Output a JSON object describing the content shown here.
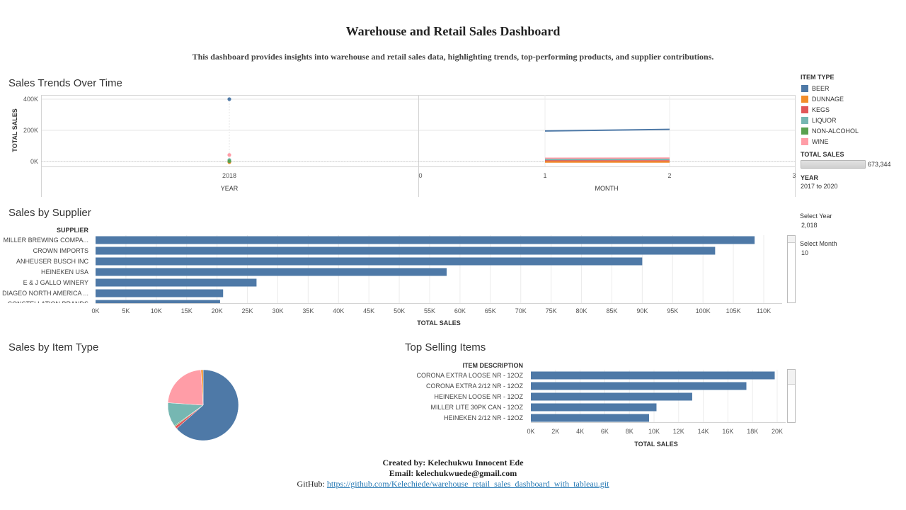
{
  "header": {
    "title": "Warehouse and Retail Sales Dashboard",
    "subtitle": "This dashboard provides insights into warehouse and retail sales data, highlighting trends, top-performing products, and supplier contributions."
  },
  "sections": {
    "trends": "Sales Trends Over Time",
    "supplier": "Sales by Supplier",
    "item_type": "Sales by Item Type",
    "top_items": "Top Selling Items"
  },
  "legend": {
    "title": "ITEM TYPE",
    "items": [
      {
        "label": "BEER",
        "color": "#4e79a7"
      },
      {
        "label": "DUNNAGE",
        "color": "#f28e2b"
      },
      {
        "label": "KEGS",
        "color": "#e15759"
      },
      {
        "label": "LIQUOR",
        "color": "#76b7b2"
      },
      {
        "label": "NON-ALCOHOL",
        "color": "#59a14f"
      },
      {
        "label": "WINE",
        "color": "#ff9da7"
      }
    ],
    "size_title": "TOTAL SALES",
    "size_value": "673,344",
    "year_title": "YEAR",
    "year_range": "2017 to 2020"
  },
  "filters": {
    "year_label": "Select Year",
    "year_value": "2,018",
    "month_label": "Select Month",
    "month_value": "10"
  },
  "footer": {
    "created_by": "Created by: Kelechukwu Innocent Ede",
    "email": "Email: kelechukwuede@gmail.com",
    "github_label": "GitHub:",
    "github_url": "https://github.com/Kelechiede/warehouse_retail_sales_dashboard_with_tableau.git"
  },
  "chart_data": [
    {
      "id": "trends",
      "type": "scatter",
      "title": "Sales Trends Over Time",
      "ylabel": "TOTAL SALES",
      "ylim": [
        0,
        400000
      ],
      "yticks": [
        "0K",
        "200K",
        "400K"
      ],
      "panes": [
        {
          "xlabel": "YEAR",
          "xticks": [
            "2018"
          ],
          "type": "scatter",
          "series": [
            {
              "name": "BEER",
              "x": [
                "2018"
              ],
              "values": [
                400000
              ]
            },
            {
              "name": "DUNNAGE",
              "x": [
                "2018"
              ],
              "values": [
                -4000
              ]
            },
            {
              "name": "KEGS",
              "x": [
                "2018"
              ],
              "values": [
                3000
              ]
            },
            {
              "name": "LIQUOR",
              "x": [
                "2018"
              ],
              "values": [
                10000
              ]
            },
            {
              "name": "NON-ALCOHOL",
              "x": [
                "2018"
              ],
              "values": [
                2000
              ]
            },
            {
              "name": "WINE",
              "x": [
                "2018"
              ],
              "values": [
                42000
              ]
            }
          ]
        },
        {
          "xlabel": "MONTH",
          "xticks": [
            "0",
            "1",
            "2",
            "3"
          ],
          "type": "line",
          "series": [
            {
              "name": "BEER",
              "x": [
                1,
                2
              ],
              "values": [
                196000,
                206000
              ]
            },
            {
              "name": "DUNNAGE",
              "x": [
                1,
                2
              ],
              "values": [
                -3000,
                -3000
              ]
            },
            {
              "name": "KEGS",
              "x": [
                1,
                2
              ],
              "values": [
                3000,
                3000
              ]
            },
            {
              "name": "LIQUOR",
              "x": [
                1,
                2
              ],
              "values": [
                12000,
                13000
              ]
            },
            {
              "name": "NON-ALCOHOL",
              "x": [
                1,
                2
              ],
              "values": [
                1000,
                1000
              ]
            },
            {
              "name": "WINE",
              "x": [
                1,
                2
              ],
              "values": [
                20000,
                21000
              ]
            }
          ]
        }
      ]
    },
    {
      "id": "supplier",
      "type": "bar",
      "orientation": "horizontal",
      "title": "Sales by Supplier",
      "category_header": "SUPPLIER",
      "xlabel": "TOTAL SALES",
      "xlim": [
        0,
        110000
      ],
      "xticks": [
        "0K",
        "5K",
        "10K",
        "15K",
        "20K",
        "25K",
        "30K",
        "35K",
        "40K",
        "45K",
        "50K",
        "55K",
        "60K",
        "65K",
        "70K",
        "75K",
        "80K",
        "85K",
        "90K",
        "95K",
        "100K",
        "105K",
        "110K"
      ],
      "categories": [
        "MILLER BREWING COMPA...",
        "CROWN IMPORTS",
        "ANHEUSER BUSCH INC",
        "HEINEKEN USA",
        "E & J GALLO WINERY",
        "DIAGEO NORTH AMERICA ...",
        "CONSTELLATION BRANDS"
      ],
      "values": [
        108500,
        102000,
        90000,
        57800,
        26500,
        21000,
        20500
      ]
    },
    {
      "id": "item_type",
      "type": "pie",
      "title": "Sales by Item Type",
      "categories": [
        "BEER",
        "DUNNAGE",
        "KEGS",
        "LIQUOR",
        "NON-ALCOHOL",
        "WINE"
      ],
      "values": [
        63.5,
        1.0,
        1.2,
        11.0,
        0.4,
        22.9
      ]
    },
    {
      "id": "top_items",
      "type": "bar",
      "orientation": "horizontal",
      "title": "Top Selling Items",
      "category_header": "ITEM DESCRIPTION",
      "xlabel": "TOTAL SALES",
      "xlim": [
        0,
        20000
      ],
      "xticks": [
        "0K",
        "2K",
        "4K",
        "6K",
        "8K",
        "10K",
        "12K",
        "14K",
        "16K",
        "18K",
        "20K"
      ],
      "categories": [
        "CORONA EXTRA LOOSE NR - 12OZ",
        "CORONA EXTRA 2/12 NR - 12OZ",
        "HEINEKEN LOOSE NR - 12OZ",
        "MILLER LITE 30PK CAN - 12OZ",
        "HEINEKEN 2/12 NR - 12OZ"
      ],
      "values": [
        19800,
        17500,
        13100,
        10200,
        9600
      ]
    }
  ]
}
